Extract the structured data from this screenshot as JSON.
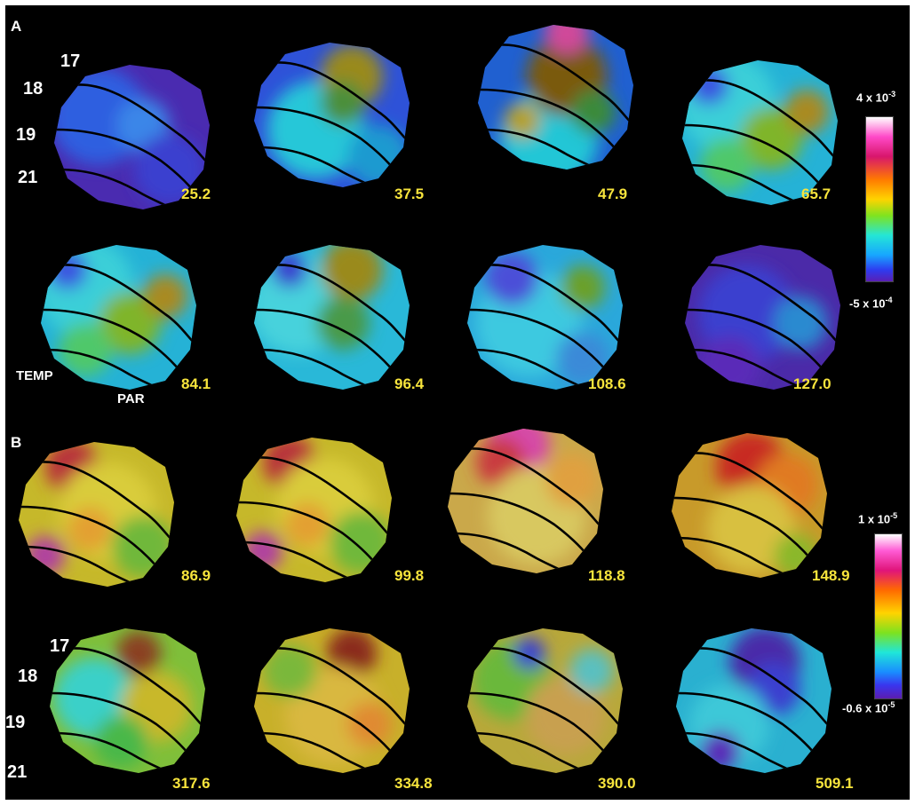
{
  "panels": {
    "a": {
      "label": "A",
      "area_labels": [
        "17",
        "18",
        "19",
        "21"
      ],
      "lobe_labels": {
        "temporal": "TEMP",
        "parietal": "PAR"
      },
      "colorbar": {
        "max_label": "4 x 10",
        "max_exp": "-3",
        "min_label": "-5 x 10",
        "min_exp": "-4"
      },
      "maps": [
        {
          "time": "25.2",
          "palette": "violet-blue"
        },
        {
          "time": "37.5",
          "palette": "blue-cyan-peak"
        },
        {
          "time": "47.9",
          "palette": "tall-peak"
        },
        {
          "time": "65.7",
          "palette": "cyan-green"
        },
        {
          "time": "84.1",
          "palette": "cyan-green"
        },
        {
          "time": "96.4",
          "palette": "cyan-olive"
        },
        {
          "time": "108.6",
          "palette": "cyan-blue"
        },
        {
          "time": "127.0",
          "palette": "violet"
        }
      ]
    },
    "b": {
      "label": "B",
      "area_labels": [
        "17",
        "18",
        "19",
        "21"
      ],
      "colorbar": {
        "max_label": "1 x 10",
        "max_exp": "-5",
        "min_label": "-0.6 x 10",
        "min_exp": "-5"
      },
      "maps": [
        {
          "time": "86.9",
          "palette": "yellow-magenta"
        },
        {
          "time": "99.8",
          "palette": "yellow-magenta"
        },
        {
          "time": "118.8",
          "palette": "orange-pink"
        },
        {
          "time": "148.9",
          "palette": "orange-red"
        },
        {
          "time": "317.6",
          "palette": "green-yellow"
        },
        {
          "time": "334.8",
          "palette": "yellow-orange"
        },
        {
          "time": "390.0",
          "palette": "yellow-green"
        },
        {
          "time": "509.1",
          "palette": "cyan-violet"
        }
      ]
    }
  },
  "colors": {
    "background": "#000000",
    "time_label": "#f7e43c",
    "text": "#ffffff"
  }
}
